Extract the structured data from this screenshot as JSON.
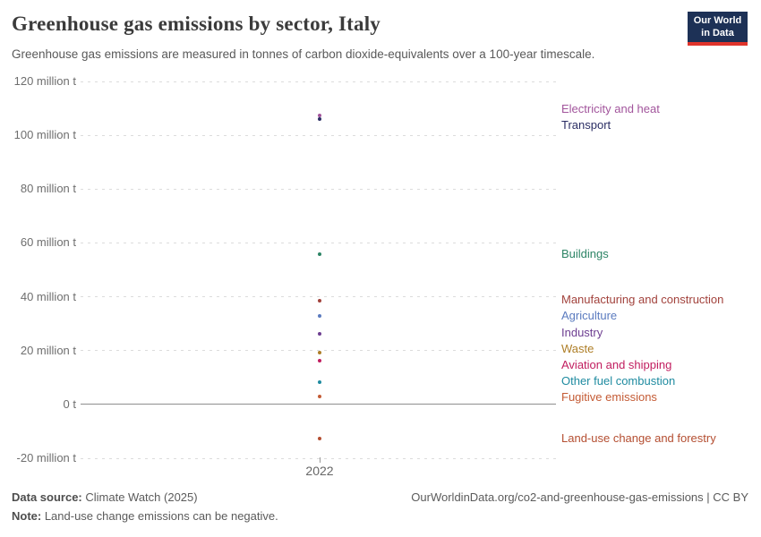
{
  "header": {
    "logo": {
      "line1": "Our World",
      "line2": "in Data",
      "bg_color": "#1d3156",
      "bar_color": "#e0342b"
    }
  },
  "chart_data": {
    "type": "scatter",
    "title": "Greenhouse gas emissions by sector, Italy",
    "subtitle": "Greenhouse gas emissions are measured in tonnes of carbon dioxide-equivalents over a 100-year timescale.",
    "x": [
      2022
    ],
    "x_tick_label": "2022",
    "unit": "million t",
    "ylim": [
      -20,
      120
    ],
    "grid": true,
    "legend_position": "right",
    "y_ticks": [
      {
        "value": 120,
        "label": "120 million t"
      },
      {
        "value": 100,
        "label": "100 million t"
      },
      {
        "value": 80,
        "label": "80 million t"
      },
      {
        "value": 60,
        "label": "60 million t"
      },
      {
        "value": 40,
        "label": "40 million t"
      },
      {
        "value": 20,
        "label": "20 million t"
      },
      {
        "value": 0,
        "label": "0 t"
      },
      {
        "value": -20,
        "label": "-20 million t"
      }
    ],
    "series": [
      {
        "name": "Electricity and heat",
        "value": 107.4,
        "color": "#a2559c"
      },
      {
        "name": "Transport",
        "value": 106.1,
        "color": "#2b2e64"
      },
      {
        "name": "Buildings",
        "value": 55.7,
        "color": "#2c8465"
      },
      {
        "name": "Manufacturing and construction",
        "value": 38.6,
        "color": "#a2423c"
      },
      {
        "name": "Agriculture",
        "value": 33.0,
        "color": "#5b7bbf"
      },
      {
        "name": "Industry",
        "value": 26.3,
        "color": "#6d3e91"
      },
      {
        "name": "Waste",
        "value": 19.4,
        "color": "#ae7e27"
      },
      {
        "name": "Aviation and shipping",
        "value": 16.3,
        "color": "#c11d5f"
      },
      {
        "name": "Other fuel combustion",
        "value": 8.3,
        "color": "#1f8ba0"
      },
      {
        "name": "Fugitive emissions",
        "value": 3.0,
        "color": "#c45b35"
      },
      {
        "name": "Land-use change and forestry",
        "value": -12.7,
        "color": "#b44e31"
      }
    ]
  },
  "footer": {
    "data_source_label": "Data source:",
    "data_source_value": " Climate Watch (2025)",
    "note_label": "Note:",
    "note_value": " Land-use change emissions can be negative.",
    "link": "OurWorldinData.org/co2-and-greenhouse-gas-emissions | CC BY"
  }
}
